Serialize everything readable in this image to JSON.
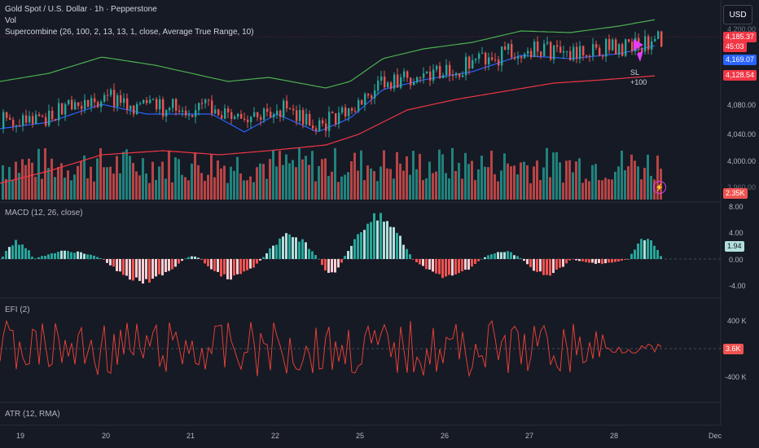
{
  "header": {
    "symbol_title": "Gold Spot / U.S. Dollar · 1h · Pepperstone",
    "vol_label": "Vol",
    "indicator_label": "Supercombine (26, 100, 2, 13, 13, 1, close, Average True Range, 10)"
  },
  "currency_button": "USD",
  "price_axis": {
    "ticks": [
      "4,080.00",
      "4,040.00",
      "4,000.00",
      "3,960.00"
    ],
    "top_tag": "4,200.00"
  },
  "price_tags": {
    "last_price": "4,185.37",
    "countdown": "45:03",
    "mid_band": "4,169.07",
    "lower_band": "4,128.54",
    "volume": "2.35K"
  },
  "markers": {
    "sl_label": "SL",
    "sl_value": "+100"
  },
  "macd": {
    "label": "MACD (12, 26, close)",
    "ticks": [
      "8.00",
      "4.00",
      "0.00",
      "-4.00"
    ],
    "value": "1.94"
  },
  "efi": {
    "label": "EFI (2)",
    "ticks": [
      "400 K",
      "-400 K"
    ],
    "value": "3.6K"
  },
  "atr": {
    "label": "ATR (12, RMA)"
  },
  "time_axis": [
    "19",
    "20",
    "21",
    "22",
    "25",
    "26",
    "27",
    "28",
    "Dec"
  ],
  "colors": {
    "bg": "#161a25",
    "up": "#26a69a",
    "down": "#ef5350",
    "upper_band": "#4caf50",
    "mid_band": "#2962ff",
    "lower_band": "#f23645",
    "efi_line": "#f44336",
    "marker": "#e040fb"
  }
}
